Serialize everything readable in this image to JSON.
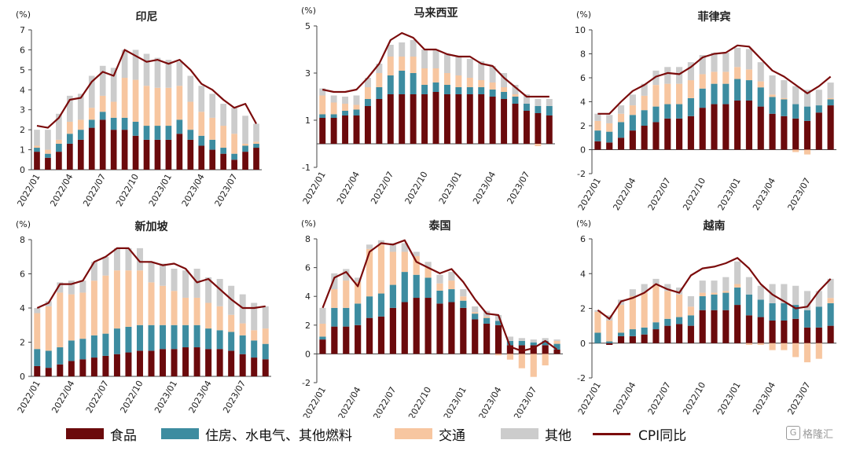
{
  "legend": {
    "food": "食品",
    "housing": "住房、水电气、其他燃料",
    "transport": "交通",
    "other": "其他",
    "cpi": "CPI同比"
  },
  "colors": {
    "food": "#6b0a0c",
    "housing": "#3d8ca0",
    "transport": "#f7c6a0",
    "other": "#cccccc",
    "cpi": "#7b0c0c"
  },
  "watermark": {
    "text": "格隆汇",
    "icon": "logo-icon"
  },
  "chart_data": [
    {
      "type": "bar",
      "title": "印尼",
      "unit": "(%)",
      "ylim": [
        0,
        7
      ],
      "yticks": [
        0,
        1,
        2,
        3,
        4,
        5,
        6,
        7
      ],
      "categories": [
        "2022/01",
        "2022/02",
        "2022/03",
        "2022/04",
        "2022/05",
        "2022/06",
        "2022/07",
        "2022/08",
        "2022/09",
        "2022/10",
        "2022/11",
        "2022/12",
        "2023/01",
        "2023/02",
        "2023/03",
        "2023/04",
        "2023/05",
        "2023/06",
        "2023/07",
        "2023/08",
        "2023/09"
      ],
      "xtick_labels": [
        "2022/01",
        "2022/04",
        "2022/07",
        "2022/10",
        "2023/01",
        "2023/04",
        "2023/07"
      ],
      "series": [
        {
          "name": "食品",
          "values": [
            0.9,
            0.6,
            0.9,
            1.3,
            1.5,
            2.1,
            2.5,
            2.0,
            2.0,
            1.7,
            1.5,
            1.5,
            1.5,
            1.8,
            1.5,
            1.2,
            1.0,
            0.8,
            0.5,
            0.9,
            1.1
          ]
        },
        {
          "name": "住房、水电气、其他燃料",
          "values": [
            0.2,
            0.2,
            0.4,
            0.5,
            0.5,
            0.4,
            0.4,
            0.6,
            0.6,
            0.7,
            0.7,
            0.7,
            0.7,
            0.7,
            0.5,
            0.5,
            0.5,
            0.3,
            0.3,
            0.3,
            0.2
          ]
        },
        {
          "name": "交通",
          "values": [
            0.1,
            0.2,
            0.2,
            0.6,
            0.5,
            0.6,
            0.8,
            0.8,
            2.0,
            2.1,
            2.0,
            1.9,
            1.9,
            1.7,
            1.4,
            1.2,
            1.1,
            1.1,
            1.0,
            0.1,
            0.1
          ]
        },
        {
          "name": "其他",
          "values": [
            0.8,
            1.0,
            1.3,
            1.3,
            1.3,
            1.6,
            1.5,
            1.7,
            1.4,
            1.5,
            1.6,
            1.5,
            1.4,
            1.2,
            1.3,
            1.3,
            1.2,
            1.1,
            1.3,
            1.4,
            0.9
          ]
        },
        {
          "name": "CPI同比",
          "values": [
            2.2,
            2.1,
            2.6,
            3.5,
            3.6,
            4.4,
            4.9,
            4.7,
            6.0,
            5.7,
            5.4,
            5.5,
            5.3,
            5.5,
            5.0,
            4.3,
            4.0,
            3.5,
            3.1,
            3.3,
            2.3
          ]
        }
      ]
    },
    {
      "type": "bar",
      "title": "马来西亚",
      "unit": "(%)",
      "ylim": [
        -1,
        5
      ],
      "yticks": [
        -1,
        1,
        3,
        5
      ],
      "categories": [
        "2022/01",
        "2022/02",
        "2022/03",
        "2022/04",
        "2022/05",
        "2022/06",
        "2022/07",
        "2022/08",
        "2022/09",
        "2022/10",
        "2022/11",
        "2022/12",
        "2023/01",
        "2023/02",
        "2023/03",
        "2023/04",
        "2023/05",
        "2023/06",
        "2023/07",
        "2023/08",
        "2023/09"
      ],
      "xtick_labels": [
        "2022/01",
        "2022/04",
        "2022/07",
        "2022/10",
        "2023/01",
        "2023/04",
        "2023/07"
      ],
      "series": [
        {
          "name": "食品",
          "values": [
            1.1,
            1.1,
            1.2,
            1.2,
            1.6,
            1.9,
            2.1,
            2.1,
            2.1,
            2.1,
            2.2,
            2.1,
            2.1,
            2.1,
            2.1,
            2.0,
            1.9,
            1.7,
            1.4,
            1.3,
            1.2
          ]
        },
        {
          "name": "住房、水电气、其他燃料",
          "values": [
            0.15,
            0.15,
            0.2,
            0.25,
            0.3,
            0.5,
            0.8,
            1.0,
            0.9,
            0.4,
            0.4,
            0.4,
            0.3,
            0.3,
            0.3,
            0.3,
            0.3,
            0.3,
            0.3,
            0.3,
            0.4
          ]
        },
        {
          "name": "交通",
          "values": [
            0.8,
            0.5,
            0.3,
            0.2,
            0.5,
            0.6,
            0.8,
            0.6,
            0.7,
            0.7,
            0.6,
            0.5,
            0.5,
            0.4,
            0.3,
            0.3,
            0.2,
            0.1,
            0.0,
            -0.1,
            0.0
          ]
        },
        {
          "name": "其他",
          "values": [
            0.3,
            0.3,
            0.3,
            0.4,
            0.4,
            0.4,
            0.5,
            0.6,
            0.7,
            0.8,
            0.8,
            0.8,
            0.8,
            0.8,
            0.8,
            0.7,
            0.6,
            0.4,
            0.4,
            0.3,
            0.3
          ]
        },
        {
          "name": "CPI同比",
          "values": [
            2.3,
            2.2,
            2.2,
            2.3,
            2.8,
            3.4,
            4.4,
            4.7,
            4.5,
            4.0,
            4.0,
            3.8,
            3.7,
            3.7,
            3.4,
            3.3,
            2.8,
            2.4,
            2.0,
            2.0,
            2.0
          ]
        }
      ]
    },
    {
      "type": "bar",
      "title": "菲律宾",
      "unit": "(%)",
      "ylim": [
        -2,
        10
      ],
      "yticks": [
        -2,
        0,
        2,
        4,
        6,
        8,
        10
      ],
      "categories": [
        "2022/01",
        "2022/02",
        "2022/03",
        "2022/04",
        "2022/05",
        "2022/06",
        "2022/07",
        "2022/08",
        "2022/09",
        "2022/10",
        "2022/11",
        "2022/12",
        "2023/01",
        "2023/02",
        "2023/03",
        "2023/04",
        "2023/05",
        "2023/06",
        "2023/07",
        "2023/08",
        "2023/09"
      ],
      "xtick_labels": [
        "2022/01",
        "2022/04",
        "2022/07",
        "2022/10",
        "2023/01",
        "2023/04",
        "2023/07"
      ],
      "series": [
        {
          "name": "食品",
          "values": [
            0.7,
            0.6,
            1.0,
            1.6,
            2.0,
            2.3,
            2.6,
            2.6,
            2.8,
            3.5,
            3.8,
            3.8,
            4.1,
            4.1,
            3.6,
            3.0,
            2.8,
            2.6,
            2.4,
            3.1,
            3.7
          ]
        },
        {
          "name": "住房、水电气、其他燃料",
          "values": [
            0.9,
            0.9,
            1.3,
            1.3,
            1.3,
            1.3,
            1.2,
            1.2,
            1.5,
            1.6,
            1.7,
            1.7,
            1.8,
            1.7,
            1.6,
            1.4,
            1.4,
            1.2,
            1.2,
            0.6,
            0.5
          ]
        },
        {
          "name": "交通",
          "values": [
            0.8,
            0.7,
            0.7,
            0.8,
            1.2,
            1.8,
            1.7,
            1.7,
            1.5,
            1.2,
            1.0,
            1.0,
            1.0,
            0.9,
            0.5,
            0.2,
            0.1,
            -0.2,
            -0.4,
            0.0,
            0.1
          ]
        },
        {
          "name": "其他",
          "values": [
            0.6,
            0.7,
            0.7,
            0.9,
            1.0,
            1.2,
            1.4,
            1.4,
            1.5,
            1.6,
            1.6,
            1.6,
            1.6,
            1.7,
            1.6,
            1.6,
            1.5,
            1.5,
            1.4,
            1.3,
            1.3
          ]
        },
        {
          "name": "CPI同比",
          "values": [
            3.0,
            3.0,
            4.0,
            4.9,
            5.4,
            6.1,
            6.4,
            6.3,
            6.9,
            7.7,
            8.0,
            8.1,
            8.7,
            8.6,
            7.6,
            6.6,
            6.1,
            5.4,
            4.7,
            5.3,
            6.1
          ]
        }
      ]
    },
    {
      "type": "bar",
      "title": "新加坡",
      "unit": "(%)",
      "ylim": [
        0,
        8
      ],
      "yticks": [
        0,
        2,
        4,
        6,
        8
      ],
      "categories": [
        "2022/01",
        "2022/02",
        "2022/03",
        "2022/04",
        "2022/05",
        "2022/06",
        "2022/07",
        "2022/08",
        "2022/09",
        "2022/10",
        "2022/11",
        "2022/12",
        "2023/01",
        "2023/02",
        "2023/03",
        "2023/04",
        "2023/05",
        "2023/06",
        "2023/07",
        "2023/08",
        "2023/09"
      ],
      "xtick_labels": [
        "2022/01",
        "2022/04",
        "2022/07",
        "2022/10",
        "2023/01",
        "2023/04",
        "2023/07"
      ],
      "series": [
        {
          "name": "食品",
          "values": [
            0.6,
            0.5,
            0.7,
            0.9,
            1.0,
            1.1,
            1.2,
            1.3,
            1.4,
            1.5,
            1.5,
            1.6,
            1.6,
            1.7,
            1.7,
            1.6,
            1.6,
            1.5,
            1.3,
            1.1,
            1.0
          ]
        },
        {
          "name": "住房、水电气、其他燃料",
          "values": [
            1.0,
            1.0,
            1.0,
            1.2,
            1.2,
            1.3,
            1.3,
            1.5,
            1.5,
            1.5,
            1.5,
            1.4,
            1.4,
            1.3,
            1.3,
            1.2,
            1.1,
            1.1,
            1.1,
            1.0,
            0.9
          ]
        },
        {
          "name": "交通",
          "values": [
            2.1,
            2.6,
            3.2,
            2.7,
            2.7,
            3.2,
            3.4,
            3.4,
            3.3,
            3.2,
            2.5,
            2.3,
            2.0,
            1.6,
            1.6,
            1.5,
            1.4,
            1.0,
            0.7,
            0.6,
            0.9
          ]
        },
        {
          "name": "其他",
          "values": [
            0.3,
            0.3,
            0.6,
            0.8,
            0.7,
            1.1,
            1.1,
            1.3,
            1.3,
            1.3,
            1.2,
            1.3,
            1.3,
            1.6,
            1.7,
            1.5,
            1.6,
            1.7,
            1.7,
            1.6,
            1.3
          ]
        },
        {
          "name": "CPI同比",
          "values": [
            4.0,
            4.3,
            5.4,
            5.4,
            5.6,
            6.7,
            7.0,
            7.5,
            7.5,
            6.7,
            6.7,
            6.5,
            6.6,
            6.3,
            5.5,
            5.7,
            5.1,
            4.5,
            4.0,
            4.0,
            4.1
          ]
        }
      ]
    },
    {
      "type": "bar",
      "title": "泰国",
      "unit": "(%)",
      "ylim": [
        -2,
        8
      ],
      "yticks": [
        -2,
        0,
        2,
        4,
        6,
        8
      ],
      "categories": [
        "2022/01",
        "2022/02",
        "2022/03",
        "2022/04",
        "2022/05",
        "2022/06",
        "2022/07",
        "2022/08",
        "2022/09",
        "2022/10",
        "2022/11",
        "2022/12",
        "2023/01",
        "2023/02",
        "2023/03",
        "2023/04",
        "2023/05",
        "2023/06",
        "2023/07",
        "2023/08",
        "2023/09"
      ],
      "xtick_labels": [
        "2022/01",
        "2022/04",
        "2022/07",
        "2022/10",
        "2023/01",
        "2023/04",
        "2023/07"
      ],
      "series": [
        {
          "name": "食品",
          "values": [
            1.0,
            1.9,
            1.9,
            2.0,
            2.5,
            2.6,
            3.2,
            3.6,
            3.9,
            3.9,
            3.5,
            3.6,
            3.2,
            2.4,
            2.1,
            2.0,
            0.6,
            0.6,
            0.6,
            0.6,
            0.3
          ]
        },
        {
          "name": "住房、水电气、其他燃料",
          "values": [
            0.2,
            1.3,
            1.3,
            1.5,
            1.5,
            1.6,
            1.6,
            2.1,
            1.6,
            1.4,
            0.9,
            0.9,
            0.5,
            0.4,
            0.4,
            0.3,
            0.3,
            0.3,
            0.2,
            0.3,
            0.4
          ]
        },
        {
          "name": "交通",
          "values": [
            0.9,
            1.3,
            1.9,
            1.5,
            3.3,
            3.4,
            2.3,
            1.4,
            1.3,
            0.7,
            0.5,
            0.6,
            0.3,
            0.1,
            0.1,
            -0.1,
            -0.4,
            -1.0,
            -1.6,
            -0.8,
            0.2
          ]
        },
        {
          "name": "其他",
          "values": [
            1.1,
            1.1,
            0.8,
            0.3,
            0.3,
            0.3,
            0.6,
            0.6,
            0.3,
            0.4,
            0.6,
            0.6,
            0.5,
            0.4,
            0.4,
            0.4,
            0.3,
            0.2,
            0.2,
            0.2,
            0.1
          ]
        },
        {
          "name": "CPI同比",
          "values": [
            3.2,
            5.3,
            5.7,
            4.7,
            7.1,
            7.7,
            7.6,
            7.9,
            6.4,
            6.0,
            5.6,
            5.9,
            5.0,
            3.8,
            2.8,
            2.7,
            0.5,
            0.2,
            0.4,
            0.9,
            0.3
          ]
        }
      ]
    },
    {
      "type": "bar",
      "title": "越南",
      "unit": "(%)",
      "ylim": [
        -2,
        6
      ],
      "yticks": [
        -2,
        0,
        2,
        4,
        6
      ],
      "categories": [
        "2022/01",
        "2022/02",
        "2022/03",
        "2022/04",
        "2022/05",
        "2022/06",
        "2022/07",
        "2022/08",
        "2022/09",
        "2022/10",
        "2022/11",
        "2022/12",
        "2023/01",
        "2023/02",
        "2023/03",
        "2023/04",
        "2023/05",
        "2023/06",
        "2023/07",
        "2023/08",
        "2023/09"
      ],
      "xtick_labels": [
        "2022/01",
        "2022/04",
        "2022/07",
        "2022/10",
        "2023/01",
        "2023/04",
        "2023/07"
      ],
      "series": [
        {
          "name": "食品",
          "values": [
            0.0,
            -0.1,
            0.4,
            0.4,
            0.5,
            0.8,
            1.0,
            1.1,
            1.0,
            1.9,
            1.9,
            1.9,
            2.2,
            1.6,
            1.5,
            1.3,
            1.3,
            1.4,
            0.9,
            0.9,
            1.0
          ]
        },
        {
          "name": "住房、水电气、其他燃料",
          "values": [
            0.6,
            0.1,
            0.2,
            0.4,
            0.4,
            0.4,
            0.4,
            0.4,
            0.6,
            0.8,
            0.9,
            1.0,
            1.0,
            1.2,
            1.0,
            1.0,
            1.0,
            0.8,
            1.0,
            1.2,
            1.3
          ]
        },
        {
          "name": "交通",
          "values": [
            1.2,
            1.2,
            1.6,
            1.9,
            2.0,
            2.2,
            1.6,
            1.3,
            0.5,
            0.2,
            0.1,
            0.1,
            0.2,
            -0.1,
            -0.1,
            -0.4,
            -0.4,
            -0.8,
            -1.1,
            -0.9,
            0.3
          ]
        },
        {
          "name": "其他",
          "values": [
            0.1,
            0.3,
            0.3,
            0.4,
            0.5,
            0.3,
            0.4,
            0.4,
            0.6,
            0.7,
            0.7,
            0.8,
            1.3,
            1.0,
            0.8,
            1.1,
            1.1,
            1.1,
            1.1,
            0.9,
            1.1
          ]
        },
        {
          "name": "CPI同比",
          "values": [
            1.9,
            1.4,
            2.4,
            2.6,
            2.9,
            3.4,
            3.1,
            2.9,
            3.9,
            4.3,
            4.4,
            4.6,
            4.9,
            4.3,
            3.4,
            2.8,
            2.4,
            2.0,
            2.1,
            3.0,
            3.7
          ]
        }
      ]
    }
  ]
}
